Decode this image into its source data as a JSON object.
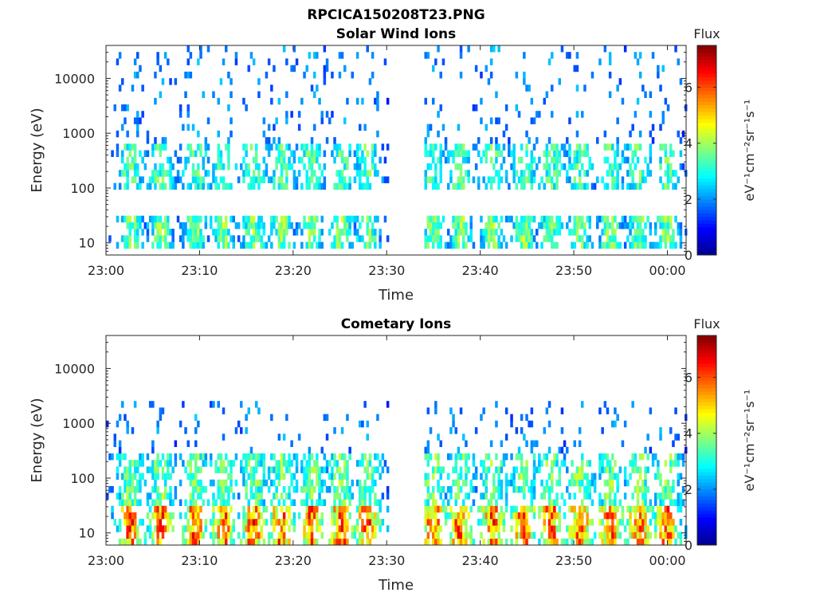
{
  "figure_title": "RPCICA150208T23.PNG",
  "colorbar_label": "Flux",
  "colorbar_units": "eV⁻¹cm⁻²sr⁻¹s⁻¹",
  "colormap": [
    "#00008f",
    "#0000ff",
    "#0080ff",
    "#00ffff",
    "#80ff80",
    "#ffff00",
    "#ff8000",
    "#ff0000",
    "#800000"
  ],
  "chart_data": [
    {
      "type": "heatmap",
      "title": "Solar Wind Ions",
      "xlabel": "Time",
      "ylabel": "Energy (eV)",
      "x_range": [
        "23:00",
        "00:02"
      ],
      "y_range": [
        6,
        40000
      ],
      "yscale": "log",
      "xticks": [
        "23:00",
        "23:10",
        "23:20",
        "23:30",
        "23:40",
        "23:50",
        "00:00"
      ],
      "yticks": [
        "10",
        "100",
        "1000",
        "10000"
      ],
      "colorbar_range": [
        0,
        7.5
      ],
      "colorbar_ticks": [
        "0",
        "2",
        "4",
        "6"
      ],
      "data_gap": [
        "23:30",
        "23:34"
      ],
      "bursts_time": [
        "23:02.5",
        "23:05.7",
        "23:09.4",
        "23:12.4",
        "23:15.6",
        "23:18.6",
        "23:21.8",
        "23:25.0",
        "23:27.8",
        "23:34.8",
        "23:37.7",
        "23:41.2",
        "23:44.5",
        "23:47.4",
        "23:50.5",
        "23:53.8",
        "23:56.8",
        "23:59.8"
      ],
      "bands": [
        {
          "energy_range": [
            7,
            28
          ],
          "peak_flux": 4.6,
          "description": "low-energy band at each burst"
        },
        {
          "energy_range": [
            90,
            600
          ],
          "peak_flux": 4.2,
          "description": "mid-energy band at each burst"
        },
        {
          "energy_range": [
            600,
            40000
          ],
          "peak_flux": 2.5,
          "description": "sparse high-energy points"
        }
      ]
    },
    {
      "type": "heatmap",
      "title": "Cometary Ions",
      "xlabel": "Time",
      "ylabel": "Energy (eV)",
      "x_range": [
        "23:00",
        "00:02"
      ],
      "y_range": [
        6,
        40000
      ],
      "yscale": "log",
      "xticks": [
        "23:00",
        "23:10",
        "23:20",
        "23:30",
        "23:40",
        "23:50",
        "00:00"
      ],
      "yticks": [
        "10",
        "100",
        "1000",
        "10000"
      ],
      "colorbar_range": [
        0,
        7.5
      ],
      "colorbar_ticks": [
        "0",
        "2",
        "4",
        "6"
      ],
      "data_gap": [
        "23:30",
        "23:34"
      ],
      "bursts_time": [
        "23:02.5",
        "23:05.7",
        "23:09.4",
        "23:12.4",
        "23:15.6",
        "23:18.6",
        "23:21.8",
        "23:25.0",
        "23:27.8",
        "23:34.8",
        "23:37.7",
        "23:41.2",
        "23:44.5",
        "23:47.4",
        "23:50.5",
        "23:53.8",
        "23:56.8",
        "23:59.8"
      ],
      "bands": [
        {
          "energy_range": [
            6,
            30
          ],
          "peak_flux": 7.0,
          "description": "intense low-energy cometary ions"
        },
        {
          "energy_range": [
            30,
            300
          ],
          "peak_flux": 4.5,
          "description": "mid-energy extension"
        },
        {
          "energy_range": [
            300,
            2500
          ],
          "peak_flux": 2.5,
          "description": "sparse high-energy points"
        }
      ]
    }
  ]
}
